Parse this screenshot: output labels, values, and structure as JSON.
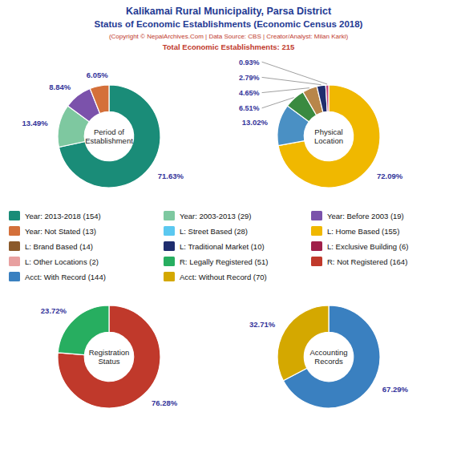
{
  "title": "Kalikamai Rural Municipality, Parsa District",
  "subtitle": "Status of Economic Establishments (Economic Census 2018)",
  "annotations": [
    "(Copyright © NepalArchives.Com | Data Source: CBS | Creator/Analyst: Milan Karki)",
    "Total Economic Establishments: 215"
  ],
  "chart_data": [
    {
      "type": "pie",
      "title": "Period of\nEstablishment",
      "values": [
        71.63,
        13.49,
        8.84,
        6.05
      ],
      "value_labels": [
        "71.63%",
        "13.49%",
        "8.84%",
        "6.05%"
      ],
      "colors": [
        "#1a8c78",
        "#7ec8a0",
        "#7b52ab",
        "#d4703a"
      ],
      "data_labels": true
    },
    {
      "type": "pie",
      "title": "Physical\nLocation",
      "values": [
        72.09,
        13.02,
        6.51,
        4.65,
        2.79,
        0.93
      ],
      "value_labels": [
        "72.09%",
        "13.02%",
        "6.51%",
        "4.65%",
        "2.79%",
        "0.93%"
      ],
      "colors": [
        "#f0b800",
        "#4a90c4",
        "#3a8a40",
        "#b8864a",
        "#1f2d6e",
        "#c0407a"
      ],
      "data_labels": true
    },
    {
      "type": "pie",
      "title": "Registration\nStatus",
      "values": [
        76.28,
        23.72
      ],
      "value_labels": [
        "76.28%",
        "23.72%"
      ],
      "colors": [
        "#c0392b",
        "#27ae60"
      ],
      "data_labels": true
    },
    {
      "type": "pie",
      "title": "Accounting\nRecords",
      "values": [
        67.29,
        32.71
      ],
      "value_labels": [
        "67.29%",
        "32.71%"
      ],
      "colors": [
        "#3a80c0",
        "#d4a800"
      ],
      "data_labels": true
    }
  ],
  "legend_entries": [
    {
      "name": "Year: 2013-2018 (154)",
      "color": "#1a8c78"
    },
    {
      "name": "Year: Not Stated (13)",
      "color": "#d4703a"
    },
    {
      "name": "L: Brand Based (14)",
      "color": "#8b5a2b"
    },
    {
      "name": "L: Other Locations (2)",
      "color": "#e8a0a0"
    },
    {
      "name": "Acct: With Record (144)",
      "color": "#3a80c0"
    },
    {
      "name": "Year: 2003-2013 (29)",
      "color": "#7ec8a0"
    },
    {
      "name": "L: Street Based (28)",
      "color": "#5bc8f0"
    },
    {
      "name": "L: Traditional Market (10)",
      "color": "#1f2d6e"
    },
    {
      "name": "R: Legally Registered (51)",
      "color": "#27ae60"
    },
    {
      "name": "Acct: Without Record (70)",
      "color": "#d4a800"
    },
    {
      "name": "Year: Before 2003 (19)",
      "color": "#7b52ab"
    },
    {
      "name": "L: Home Based (155)",
      "color": "#f0b800"
    },
    {
      "name": "L: Exclusive Building (6)",
      "color": "#a0204a"
    },
    {
      "name": "R: Not Registered (164)",
      "color": "#c0392b"
    }
  ]
}
